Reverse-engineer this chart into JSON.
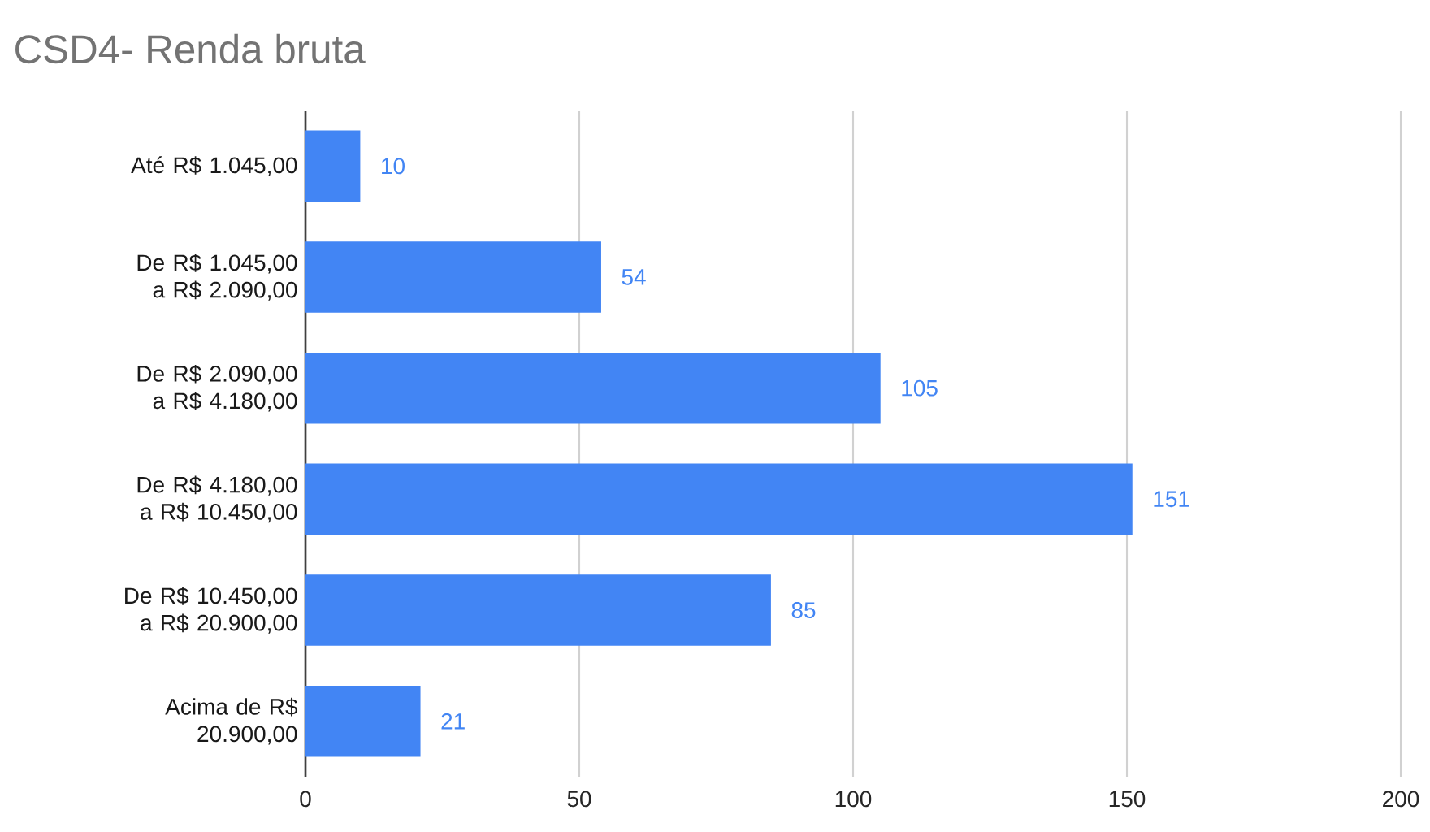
{
  "chart_data": {
    "type": "bar",
    "orientation": "horizontal",
    "title": "CSD4- Renda bruta",
    "categories": [
      "Até R$ 1.045,00",
      "De R$ 1.045,00 a R$ 2.090,00",
      "De R$ 2.090,00 a R$ 4.180,00",
      "De R$ 4.180,00 a R$ 10.450,00",
      "De R$ 10.450,00 a R$ 20.900,00",
      "Acima de R$ 20.900,00"
    ],
    "values": [
      10,
      54,
      105,
      151,
      85,
      21
    ],
    "color": "#4285f4",
    "xlim": [
      0,
      200
    ],
    "xticks": [
      0,
      50,
      100,
      150,
      200
    ],
    "grid": "x",
    "data_labels": true
  }
}
